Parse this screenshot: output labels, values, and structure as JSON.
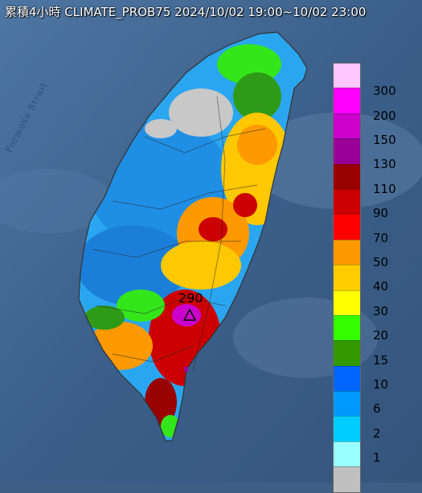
{
  "title": "累積4小時 CLIMATE_PROB75 2024/10/02 19:00~10/02 23:00",
  "strait_label": "Formosa Strait",
  "peak_value": "290",
  "legend": {
    "labels": [
      "300",
      "200",
      "150",
      "130",
      "110",
      "90",
      "70",
      "50",
      "40",
      "30",
      "20",
      "15",
      "10",
      "6",
      "2",
      "1"
    ],
    "colors": [
      "#ffc6ff",
      "#ff00ff",
      "#cc00cc",
      "#990099",
      "#990000",
      "#cc0000",
      "#ff0000",
      "#ff9900",
      "#ffcc00",
      "#ffff00",
      "#33ff00",
      "#339900",
      "#0066ff",
      "#0099ff",
      "#00ccff",
      "#99ffff",
      "#c0c0c0"
    ]
  },
  "colors": {
    "sea": "#3d5f86",
    "title_text": "#ffffff"
  }
}
